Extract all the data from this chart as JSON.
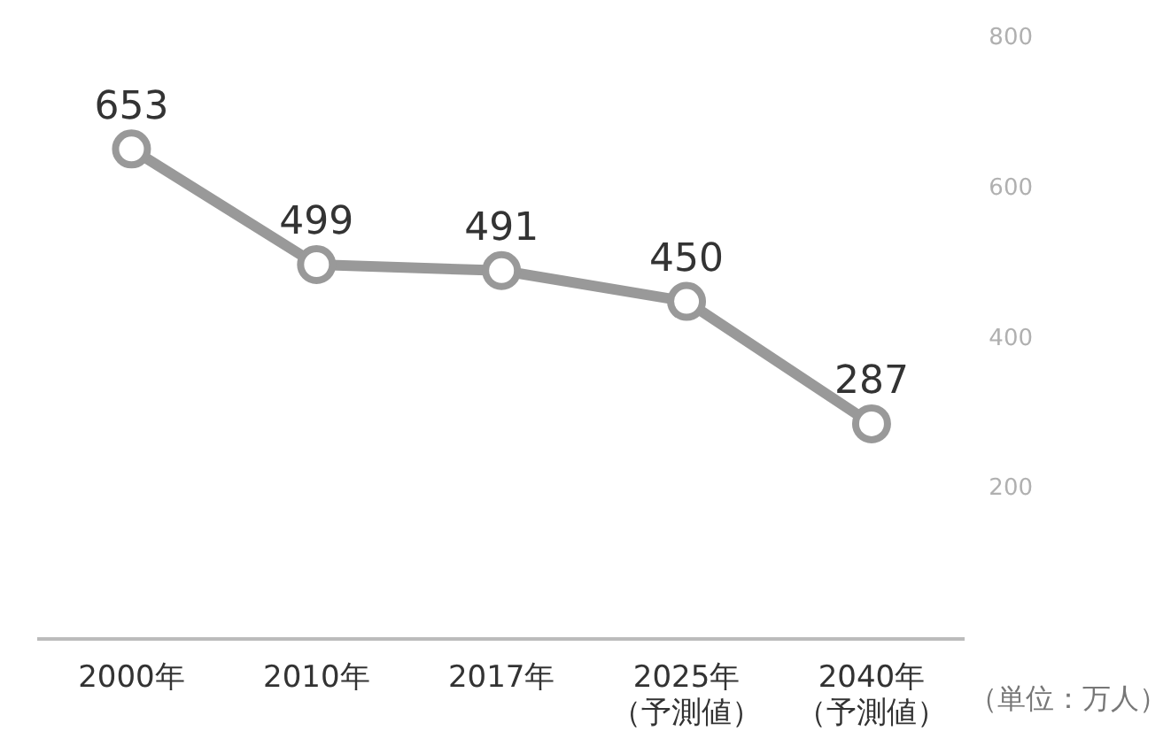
{
  "chart_data": {
    "type": "line",
    "categories": [
      "2000年",
      "2010年",
      "2017年",
      "2025年（予測値）",
      "2040年（予測値）"
    ],
    "series": [
      {
        "color": "#999999",
        "values": [
          653,
          499,
          491,
          450,
          287
        ]
      }
    ],
    "ylim": [
      0,
      800
    ],
    "yticks": [
      200,
      400,
      600,
      800
    ],
    "grid": false,
    "legend": false,
    "marker": "circle",
    "line_style": "solid",
    "data_labels": true,
    "annotations": [
      "（単位：万人）"
    ]
  }
}
